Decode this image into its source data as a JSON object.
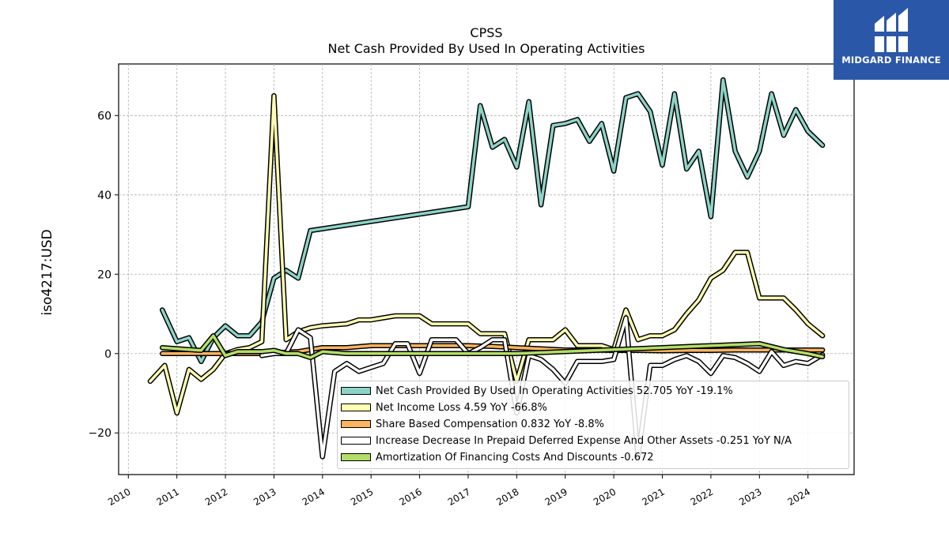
{
  "header": {
    "title_line1": "CPSS",
    "title_line2": "Net Cash Provided By Used In Operating Activities"
  },
  "logo": {
    "text": "MIDGARD FINANCE",
    "color": "#2b57a8"
  },
  "chart_data": {
    "type": "line",
    "title": "CPSS",
    "subtitle": "Net Cash Provided By Used In Operating Activities",
    "ylabel": "iso4217:USD",
    "xlabel": "",
    "xlim": [
      2009.8,
      2024.95
    ],
    "ylim": [
      -30.5,
      73
    ],
    "grid": true,
    "legend_position": "lower-right",
    "xticks": [
      2010,
      2011,
      2012,
      2013,
      2014,
      2015,
      2016,
      2017,
      2018,
      2019,
      2020,
      2021,
      2022,
      2023,
      2024
    ],
    "xtick_labels": [
      "2010",
      "2011",
      "2012",
      "2013",
      "2014",
      "2015",
      "2016",
      "2017",
      "2018",
      "2019",
      "2020",
      "2021",
      "2022",
      "2023",
      "2024"
    ],
    "yticks": [
      -20,
      0,
      20,
      40,
      60
    ],
    "ytick_labels": [
      "−20",
      "0",
      "20",
      "40",
      "60"
    ],
    "series": [
      {
        "name": "Net Cash Provided By Used In Operating Activities",
        "legend": "Net Cash Provided By Used In Operating Activities  52.705 YoY -19.1%",
        "color": "#8dd3c7",
        "x": [
          2010.7,
          2011.0,
          2011.25,
          2011.5,
          2011.75,
          2012.0,
          2012.25,
          2012.5,
          2012.75,
          2013.0,
          2013.25,
          2013.5,
          2013.75,
          2017.0,
          2017.25,
          2017.5,
          2017.75,
          2018.0,
          2018.25,
          2018.5,
          2018.75,
          2019.0,
          2019.25,
          2019.5,
          2019.75,
          2020.0,
          2020.25,
          2020.5,
          2020.75,
          2021.0,
          2021.25,
          2021.5,
          2021.75,
          2022.0,
          2022.25,
          2022.5,
          2022.75,
          2023.0,
          2023.25,
          2023.5,
          2023.75,
          2024.0,
          2024.3
        ],
        "y": [
          11,
          3,
          4,
          -2,
          4,
          7,
          4.5,
          4.5,
          8,
          19,
          21,
          19,
          31,
          37,
          62.5,
          52,
          54,
          47,
          63.5,
          37.5,
          57.5,
          58,
          59,
          53.5,
          58,
          46,
          64.5,
          65.5,
          61,
          47.5,
          65.5,
          46.5,
          51,
          34.5,
          69,
          51,
          44.5,
          51,
          65.5,
          55,
          61.5,
          56,
          52.5
        ]
      },
      {
        "name": "Net Income Loss",
        "legend": "Net Income Loss  4.59 YoY -66.8%",
        "color": "#ffffb3",
        "x": [
          2010.45,
          2010.75,
          2011.0,
          2011.25,
          2011.5,
          2011.75,
          2012.0,
          2012.25,
          2012.5,
          2012.75,
          2013.0,
          2013.25,
          2013.5,
          2013.75,
          2014.0,
          2014.5,
          2014.75,
          2015.0,
          2015.25,
          2015.5,
          2015.75,
          2016.0,
          2016.25,
          2016.5,
          2016.75,
          2017.0,
          2017.25,
          2017.5,
          2017.75,
          2018.0,
          2018.25,
          2018.5,
          2018.75,
          2019.0,
          2019.25,
          2019.5,
          2019.75,
          2020.0,
          2020.25,
          2020.5,
          2020.75,
          2021.0,
          2021.25,
          2021.5,
          2021.75,
          2022.0,
          2022.25,
          2022.5,
          2022.75,
          2023.0,
          2023.25,
          2023.5,
          2023.75,
          2024.0,
          2024.3
        ],
        "y": [
          -7,
          -3,
          -15,
          -4,
          -6.5,
          -4,
          0,
          1,
          1.5,
          3,
          65,
          3.5,
          5.5,
          6.5,
          7,
          7.5,
          8.5,
          8.5,
          9,
          9.5,
          9.5,
          9.5,
          7.5,
          7.5,
          7.5,
          7.5,
          5,
          5,
          5,
          -7,
          3.5,
          3.5,
          3.5,
          6,
          2,
          2,
          2,
          1,
          11,
          3.5,
          4.5,
          4.5,
          6,
          10,
          13.5,
          19,
          21,
          25.5,
          25.5,
          14,
          14,
          14,
          11,
          7.5,
          4.5
        ]
      },
      {
        "name": "Share Based Compensation",
        "legend": "Share Based Compensation  0.832 YoY -8.8%",
        "color": "#fdb462",
        "x": [
          2010.7,
          2011.25,
          2012.0,
          2012.75,
          2013.5,
          2014.0,
          2014.5,
          2015.0,
          2015.5,
          2016.0,
          2016.5,
          2017.0,
          2017.5,
          2018.0,
          2018.5,
          2019.0,
          2019.5,
          2020.0,
          2020.5,
          2021.0,
          2021.5,
          2022.0,
          2022.5,
          2023.0,
          2023.5,
          2024.0,
          2024.3
        ],
        "y": [
          0,
          0,
          0,
          0,
          0.5,
          1.5,
          1.5,
          2,
          2,
          2,
          2,
          2,
          1.8,
          1.5,
          1.2,
          0.9,
          0.9,
          0.8,
          0.8,
          0.7,
          0.8,
          0.8,
          0.9,
          0.9,
          0.9,
          0.9,
          0.9
        ]
      },
      {
        "name": "Increase Decrease In Prepaid Deferred Expense And Other Assets",
        "legend": "Increase Decrease In Prepaid Deferred Expense And Other Assets  -0.251 YoY N/A",
        "color": "#ffffff",
        "x": [
          2012.75,
          2013.0,
          2013.25,
          2013.5,
          2013.75,
          2014.0,
          2014.25,
          2014.5,
          2014.75,
          2015.0,
          2015.25,
          2015.5,
          2015.75,
          2016.0,
          2016.25,
          2016.5,
          2016.75,
          2017.0,
          2017.25,
          2017.5,
          2017.75,
          2018.0,
          2018.25,
          2018.5,
          2018.75,
          2019.0,
          2019.25,
          2019.5,
          2019.75,
          2020.0,
          2020.25,
          2020.5,
          2020.75,
          2021.0,
          2021.25,
          2021.5,
          2021.75,
          2022.0,
          2022.25,
          2022.5,
          2022.75,
          2023.0,
          2023.25,
          2023.5,
          2023.75,
          2024.0,
          2024.3
        ],
        "y": [
          -0.5,
          0,
          0,
          6,
          4,
          -26,
          -4.5,
          -2.5,
          -4.5,
          -3.5,
          -2.5,
          2.5,
          2.5,
          -5,
          3.5,
          3.5,
          3.5,
          0,
          1.5,
          3.5,
          3.5,
          -15,
          -0.5,
          -1.5,
          -4,
          -7.5,
          -2,
          -2,
          -2,
          -1.5,
          9,
          -26,
          -3,
          -3,
          -1.5,
          -0.5,
          -2,
          -5,
          -0.5,
          -1,
          -2.5,
          -4.5,
          0.5,
          -3,
          -2,
          -2.5,
          -0.3
        ]
      },
      {
        "name": "Amortization Of Financing Costs And Discounts",
        "legend": "Amortization Of Financing Costs And Discounts  -0.672",
        "color": "#b3de69",
        "x": [
          2010.7,
          2011.25,
          2011.5,
          2011.75,
          2012.0,
          2012.25,
          2012.5,
          2012.75,
          2013.0,
          2013.25,
          2013.5,
          2013.75,
          2014.0,
          2014.5,
          2015.0,
          2016.0,
          2017.0,
          2018.0,
          2019.0,
          2020.0,
          2021.0,
          2022.0,
          2023.0,
          2023.5,
          2024.0,
          2024.3
        ],
        "y": [
          1.5,
          1,
          0.8,
          4.5,
          -0.5,
          0.5,
          0.5,
          0.5,
          0.8,
          0,
          0,
          -1,
          0.5,
          0,
          0,
          0,
          0,
          0,
          0.5,
          1,
          1.5,
          2,
          2.5,
          1,
          0,
          -0.8
        ]
      }
    ]
  }
}
